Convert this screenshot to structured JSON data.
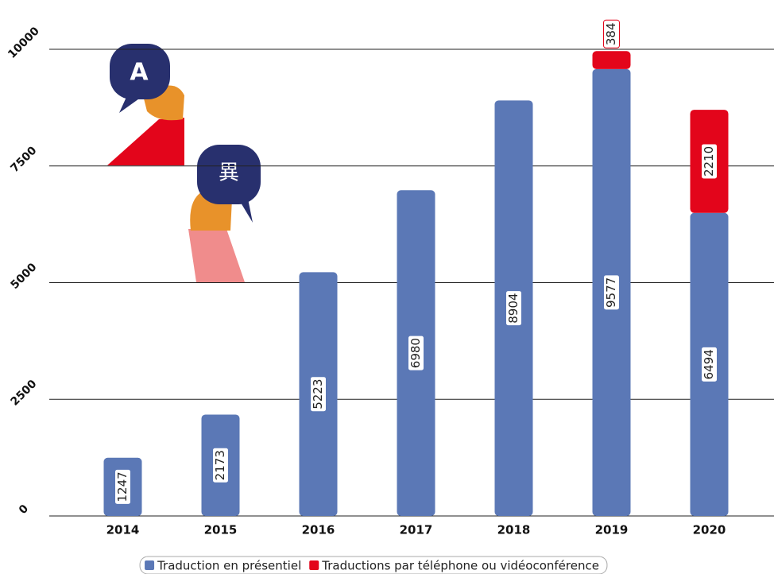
{
  "chart_data": {
    "type": "stacked_bar",
    "categories": [
      "2014",
      "2015",
      "2016",
      "2017",
      "2018",
      "2019",
      "2020"
    ],
    "series": [
      {
        "name": "Traduction en présentiel",
        "color": "#5b78b6",
        "values": [
          1247,
          2173,
          5223,
          6980,
          8904,
          9577,
          6494
        ]
      },
      {
        "name": "Traductions par téléphone ou vidéoconférence",
        "color": "#e3051b",
        "values": [
          null,
          null,
          null,
          null,
          null,
          384,
          2210
        ]
      }
    ],
    "ylim": [
      0,
      10000
    ],
    "yticks": [
      0,
      2500,
      5000,
      7500,
      10000
    ],
    "grid": true,
    "illustration_labels": [
      "A",
      "異"
    ]
  }
}
